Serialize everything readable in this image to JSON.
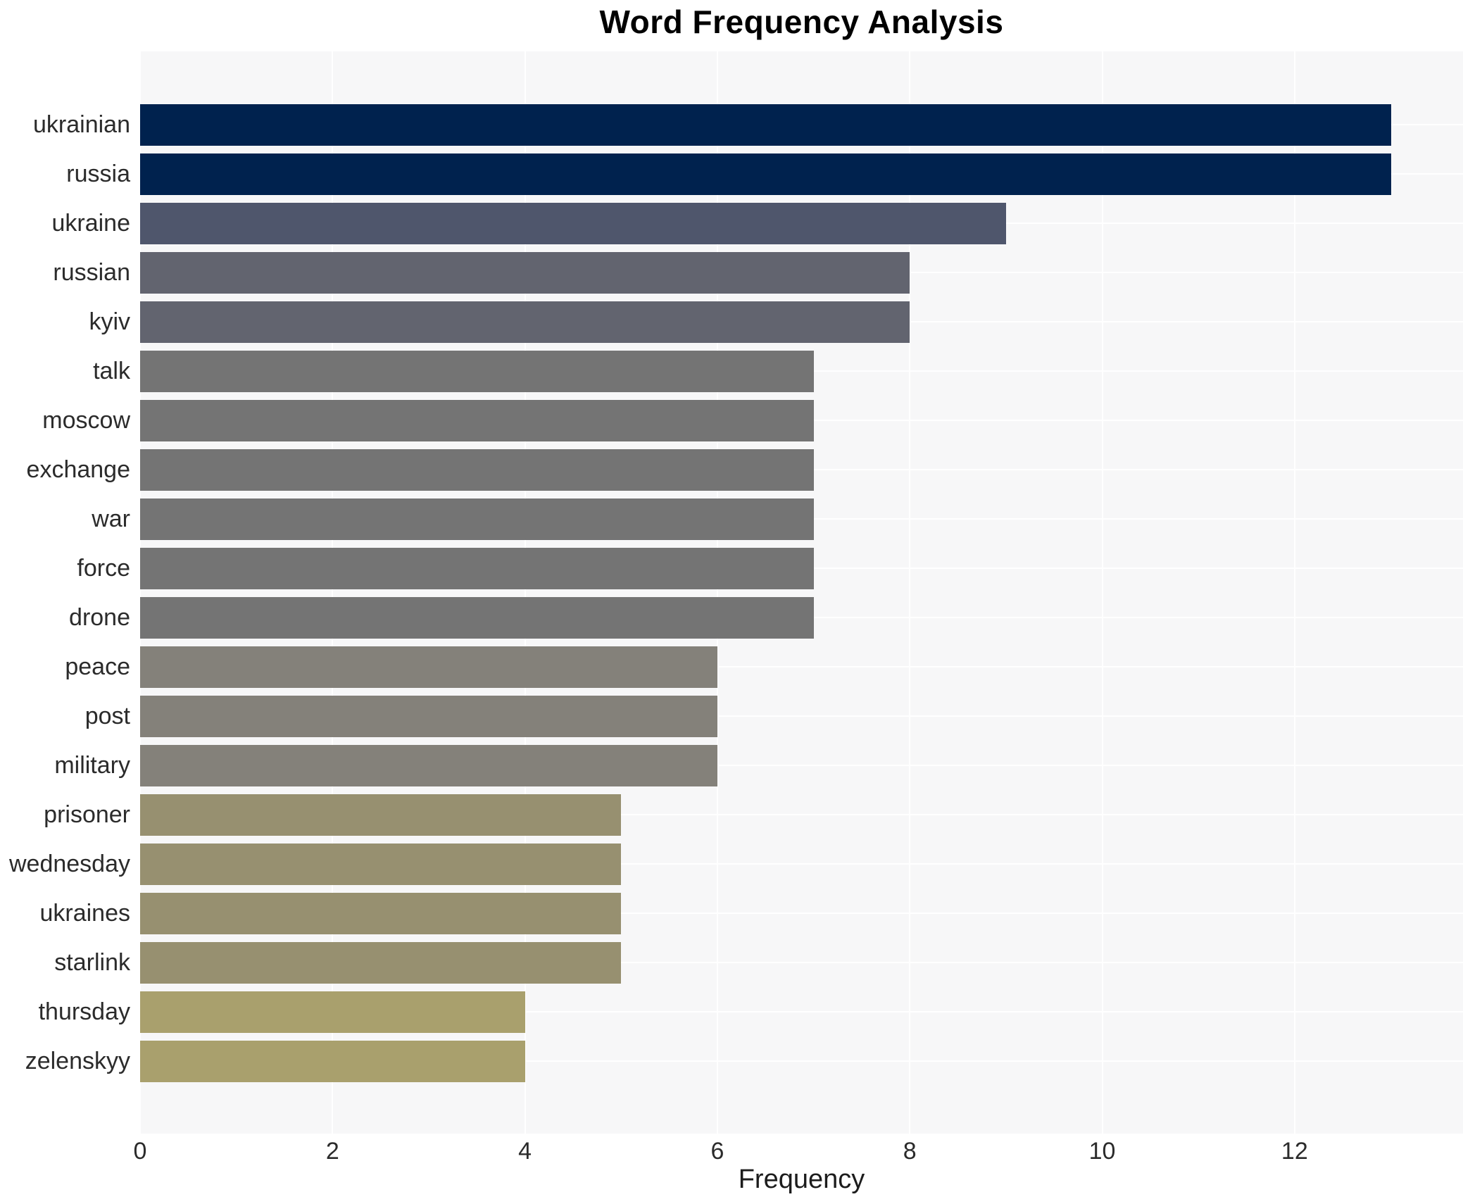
{
  "page": {
    "title": "Word Frequency Analysis"
  },
  "chart_data": {
    "type": "bar",
    "orientation": "horizontal",
    "title": "Word Frequency Analysis",
    "xlabel": "Frequency",
    "ylabel": "",
    "categories": [
      "ukrainian",
      "russia",
      "ukraine",
      "russian",
      "kyiv",
      "talk",
      "moscow",
      "exchange",
      "war",
      "force",
      "drone",
      "peace",
      "post",
      "military",
      "prisoner",
      "wednesday",
      "ukraines",
      "starlink",
      "thursday",
      "zelenskyy"
    ],
    "values": [
      13,
      13,
      9,
      8,
      8,
      7,
      7,
      7,
      7,
      7,
      7,
      6,
      6,
      6,
      5,
      5,
      5,
      5,
      4,
      4
    ],
    "bar_colors": [
      "#00224e",
      "#00224e",
      "#4f566c",
      "#62646f",
      "#62646f",
      "#747474",
      "#747474",
      "#747474",
      "#747474",
      "#747474",
      "#747474",
      "#84817a",
      "#84817a",
      "#84817a",
      "#979070",
      "#979070",
      "#979070",
      "#979070",
      "#a9a06d",
      "#a9a06d"
    ],
    "xticks": [
      0,
      2,
      4,
      6,
      8,
      10,
      12
    ],
    "xlim": [
      0,
      13.75
    ],
    "grid": "white-lines-on-light-panel",
    "legend": "none",
    "panel_bg": "#f7f7f8",
    "figure_bg": "#ffffff",
    "tick_label_color": "#2b2b2b",
    "title_color": "#000000"
  }
}
